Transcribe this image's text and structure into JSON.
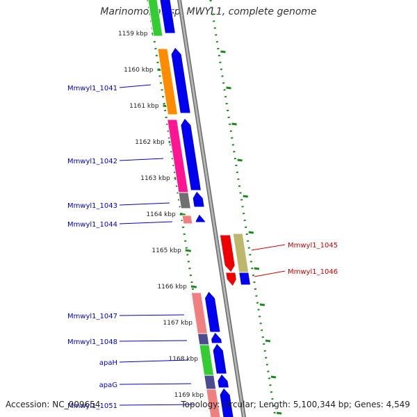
{
  "title": "Marinomonas sp. MWYL1, complete genome",
  "footer": {
    "accession": "Accession: NC_009654",
    "topology": "Topology: circular; Length: 5,100,344 bp; Genes: 4,549"
  },
  "ticks": [
    "1159 kbp",
    "1160 kbp",
    "1161 kbp",
    "1162 kbp",
    "1163 kbp",
    "1164 kbp",
    "1165 kbp",
    "1166 kbp",
    "1167 kbp",
    "1168 kbp",
    "1169 kbp"
  ],
  "gene_labels_left": [
    "Mmwyl1_1041",
    "Mmwyl1_1042",
    "Mmwyl1_1043",
    "Mmwyl1_1044",
    "Mmwyl1_1047",
    "Mmwyl1_1048",
    "apaH",
    "apaG",
    "Mmwyl1_1051"
  ],
  "gene_labels_right": [
    "Mmwyl1_1045",
    "Mmwyl1_1046"
  ],
  "colors": {
    "label_blue": "#0000cc",
    "label_red": "#cc0000",
    "tick_green": "#1a8a1a",
    "backbone_gray": "#8f8f8f",
    "arrow_blue": "#0000ee",
    "arrow_red": "#ee0000",
    "orange": "#ff8c00",
    "pink": "#ff1493",
    "salmon": "#f08080",
    "green": "#33cc33",
    "gray": "#707070",
    "slate": "#4b4b8f",
    "khaki": "#bdb76b"
  }
}
